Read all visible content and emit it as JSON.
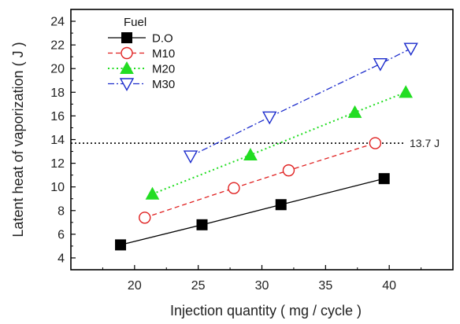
{
  "chart_data": {
    "type": "scatter",
    "xlabel": "Injection quantity ( mg / cycle )",
    "ylabel": "Latent heat of vaporization ( J )",
    "xlim": [
      15,
      45
    ],
    "ylim": [
      3,
      25
    ],
    "xticks": [
      20,
      25,
      30,
      35,
      40
    ],
    "yticks": [
      4,
      6,
      8,
      10,
      12,
      14,
      16,
      18,
      20,
      22,
      24
    ],
    "legend_title": "Fuel",
    "legend_position": "top-left",
    "grid": false,
    "series": [
      {
        "name": "D.O",
        "marker": "filled-square",
        "line": "solid",
        "color": "#000000",
        "points": [
          [
            18.9,
            5.1
          ],
          [
            25.3,
            6.8
          ],
          [
            31.5,
            8.5
          ],
          [
            39.6,
            10.7
          ]
        ]
      },
      {
        "name": "M10",
        "marker": "open-circle",
        "line": "dashed",
        "color": "#e02020",
        "points": [
          [
            20.8,
            7.4
          ],
          [
            27.8,
            9.9
          ],
          [
            32.1,
            11.4
          ],
          [
            38.9,
            13.7
          ]
        ]
      },
      {
        "name": "M20",
        "marker": "filled-triangle-up",
        "line": "dotted",
        "color": "#22dd22",
        "points": [
          [
            21.4,
            9.4
          ],
          [
            29.1,
            12.7
          ],
          [
            37.3,
            16.3
          ],
          [
            41.3,
            18.0
          ]
        ]
      },
      {
        "name": "M30",
        "marker": "open-triangle-down",
        "line": "dash-dot",
        "color": "#1c2ccc",
        "points": [
          [
            24.4,
            12.6
          ],
          [
            30.6,
            15.9
          ],
          [
            39.3,
            20.4
          ],
          [
            41.7,
            21.7
          ]
        ]
      }
    ],
    "reference_line": {
      "y": 13.7,
      "label": "13.7 J",
      "style": "dotted",
      "color": "#000000"
    }
  }
}
